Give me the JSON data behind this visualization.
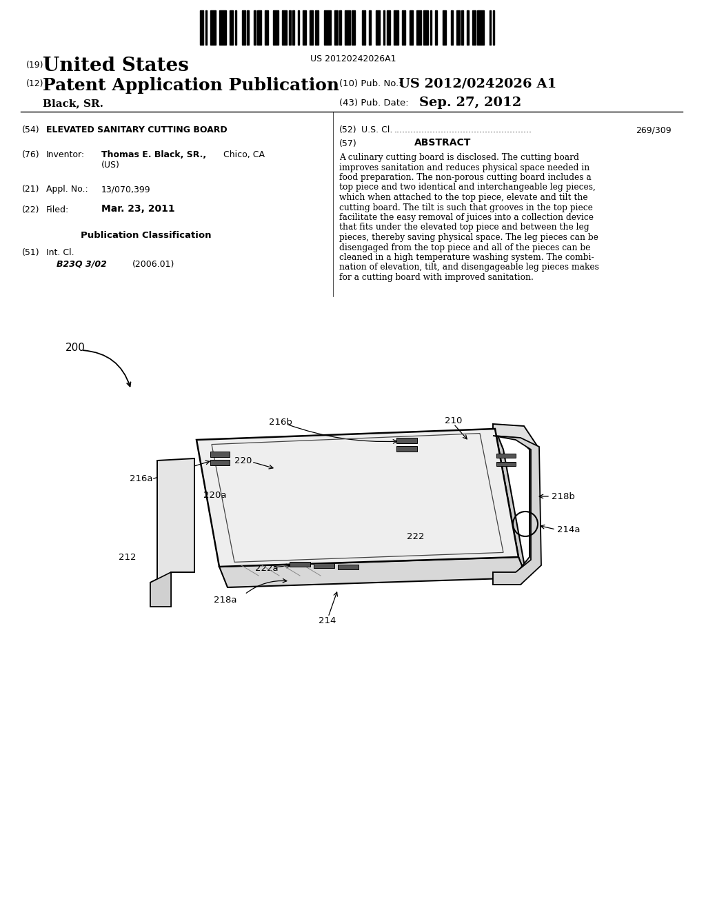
{
  "background_color": "#ffffff",
  "barcode_text": "US 20120242026A1",
  "patent_number": "US 2012/0242026 A1",
  "pub_date": "Sep. 27, 2012",
  "country": "United States",
  "doc_type": "Patent Application Publication",
  "inventor_label": "Black, SR.",
  "pub_no_label": "(10) Pub. No.:",
  "pub_date_label": "(43) Pub. Date:",
  "num_19": "(19)",
  "num_12": "(12)",
  "abstract_text_lines": [
    "A culinary cutting board is disclosed. The cutting board",
    "improves sanitation and reduces physical space needed in",
    "food preparation. The non-porous cutting board includes a",
    "top piece and two identical and interchangeable leg pieces,",
    "which when attached to the top piece, elevate and tilt the",
    "cutting board. The tilt is such that grooves in the top piece",
    "facilitate the easy removal of juices into a collection device",
    "that fits under the elevated top piece and between the leg",
    "pieces, thereby saving physical space. The leg pieces can be",
    "disengaged from the top piece and all of the pieces can be",
    "cleaned in a high temperature washing system. The combi-",
    "nation of elevation, tilt, and disengageable leg pieces makes",
    "for a cutting board with improved sanitation."
  ]
}
